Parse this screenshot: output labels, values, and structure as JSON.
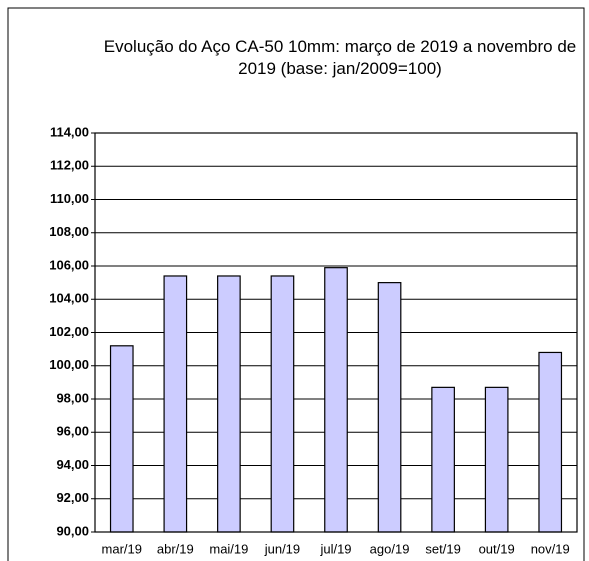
{
  "chart_data": {
    "type": "bar",
    "title": "Evolução do Aço CA-50 10mm: março de 2019 a novembro de 2019 (base: jan/2009=100)",
    "categories": [
      "mar/19",
      "abr/19",
      "mai/19",
      "jun/19",
      "jul/19",
      "ago/19",
      "set/19",
      "out/19",
      "nov/19"
    ],
    "values": [
      101.2,
      105.4,
      105.4,
      105.4,
      105.9,
      105.0,
      98.7,
      98.7,
      100.8
    ],
    "color": "#ccccff",
    "ylim": [
      90,
      114
    ],
    "yticks": [
      {
        "value": 90,
        "label": "90,00"
      },
      {
        "value": 92,
        "label": "92,00"
      },
      {
        "value": 94,
        "label": "94,00"
      },
      {
        "value": 96,
        "label": "96,00"
      },
      {
        "value": 98,
        "label": "98,00"
      },
      {
        "value": 100,
        "label": "100,00"
      },
      {
        "value": 102,
        "label": "102,00"
      },
      {
        "value": 104,
        "label": "104,00"
      },
      {
        "value": 106,
        "label": "106,00"
      },
      {
        "value": 108,
        "label": "108,00"
      },
      {
        "value": 110,
        "label": "110,00"
      },
      {
        "value": 112,
        "label": "112,00"
      },
      {
        "value": 114,
        "label": "114,00"
      }
    ],
    "grid": true
  }
}
